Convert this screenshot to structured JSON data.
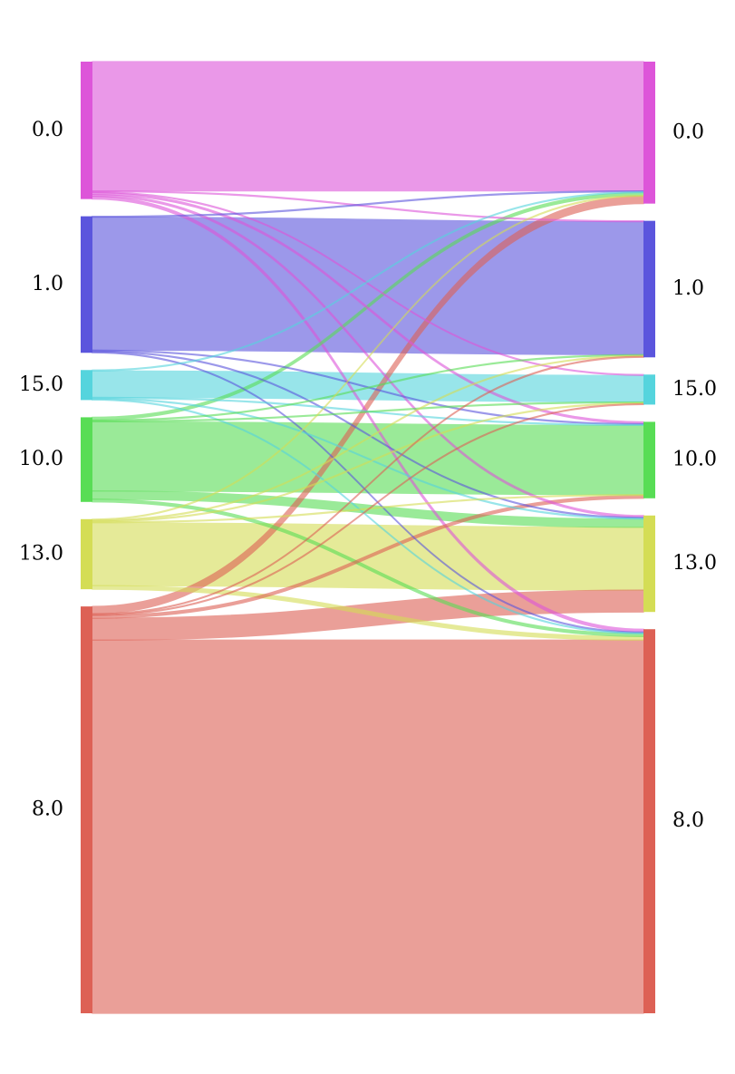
{
  "chart_data": {
    "type": "sankey",
    "left_nodes": [
      {
        "id": "0.0",
        "label": "0.0",
        "color": "#dd55d9"
      },
      {
        "id": "1.0",
        "label": "1.0",
        "color": "#5b55dd"
      },
      {
        "id": "15.0",
        "label": "15.0",
        "color": "#55d4dd"
      },
      {
        "id": "10.0",
        "label": "10.0",
        "color": "#58dd55"
      },
      {
        "id": "13.0",
        "label": "13.0",
        "color": "#d4dd55"
      },
      {
        "id": "8.0",
        "label": "8.0",
        "color": "#dd6155"
      }
    ],
    "right_nodes": [
      {
        "id": "0.0",
        "label": "0.0",
        "color": "#dd55d9"
      },
      {
        "id": "1.0",
        "label": "1.0",
        "color": "#5b55dd"
      },
      {
        "id": "15.0",
        "label": "15.0",
        "color": "#55d4dd"
      },
      {
        "id": "10.0",
        "label": "10.0",
        "color": "#58dd55"
      },
      {
        "id": "13.0",
        "label": "13.0",
        "color": "#d4dd55"
      },
      {
        "id": "8.0",
        "label": "8.0",
        "color": "#dd6155"
      }
    ],
    "flows": [
      {
        "source": "0.0",
        "target": "0.0",
        "value": 142
      },
      {
        "source": "0.0",
        "target": "1.0",
        "value": 1
      },
      {
        "source": "0.0",
        "target": "15.0",
        "value": 1
      },
      {
        "source": "0.0",
        "target": "10.0",
        "value": 2
      },
      {
        "source": "0.0",
        "target": "13.0",
        "value": 2
      },
      {
        "source": "0.0",
        "target": "8.0",
        "value": 3
      },
      {
        "source": "1.0",
        "target": "0.0",
        "value": 1
      },
      {
        "source": "1.0",
        "target": "1.0",
        "value": 146
      },
      {
        "source": "1.0",
        "target": "10.0",
        "value": 1
      },
      {
        "source": "1.0",
        "target": "13.0",
        "value": 1
      },
      {
        "source": "1.0",
        "target": "8.0",
        "value": 1
      },
      {
        "source": "15.0",
        "target": "0.0",
        "value": 1
      },
      {
        "source": "15.0",
        "target": "15.0",
        "value": 29
      },
      {
        "source": "15.0",
        "target": "10.0",
        "value": 1
      },
      {
        "source": "15.0",
        "target": "13.0",
        "value": 1
      },
      {
        "source": "15.0",
        "target": "8.0",
        "value": 1
      },
      {
        "source": "10.0",
        "target": "0.0",
        "value": 3
      },
      {
        "source": "10.0",
        "target": "1.0",
        "value": 1
      },
      {
        "source": "10.0",
        "target": "15.0",
        "value": 1
      },
      {
        "source": "10.0",
        "target": "10.0",
        "value": 76
      },
      {
        "source": "10.0",
        "target": "13.0",
        "value": 9
      },
      {
        "source": "10.0",
        "target": "8.0",
        "value": 3
      },
      {
        "source": "13.0",
        "target": "0.0",
        "value": 1
      },
      {
        "source": "13.0",
        "target": "1.0",
        "value": 1
      },
      {
        "source": "13.0",
        "target": "15.0",
        "value": 1
      },
      {
        "source": "13.0",
        "target": "10.0",
        "value": 1
      },
      {
        "source": "13.0",
        "target": "13.0",
        "value": 69
      },
      {
        "source": "13.0",
        "target": "8.0",
        "value": 4
      },
      {
        "source": "8.0",
        "target": "0.0",
        "value": 8
      },
      {
        "source": "8.0",
        "target": "1.0",
        "value": 1
      },
      {
        "source": "8.0",
        "target": "15.0",
        "value": 1
      },
      {
        "source": "8.0",
        "target": "10.0",
        "value": 3
      },
      {
        "source": "8.0",
        "target": "13.0",
        "value": 24
      },
      {
        "source": "8.0",
        "target": "8.0",
        "value": 410
      }
    ]
  }
}
